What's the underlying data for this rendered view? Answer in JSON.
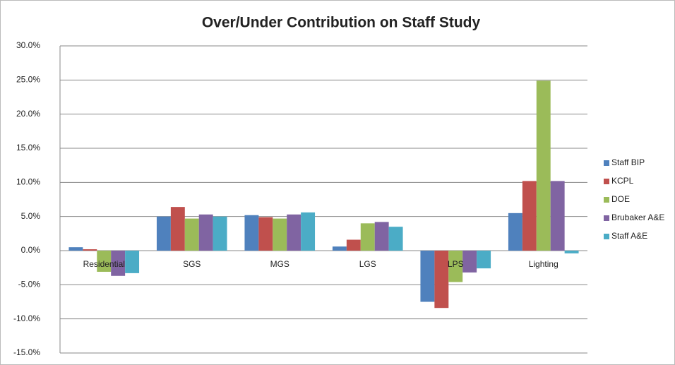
{
  "chart_data": {
    "type": "bar",
    "title": "Over/Under Contribution on Staff Study",
    "categories": [
      "Residential",
      "SGS",
      "MGS",
      "LGS",
      "LPS",
      "Lighting"
    ],
    "series": [
      {
        "name": "Staff BIP",
        "color": "#4f81bd",
        "values": [
          0.5,
          5.0,
          5.2,
          0.6,
          -7.5,
          5.5
        ]
      },
      {
        "name": "KCPL",
        "color": "#c0504d",
        "values": [
          0.2,
          6.4,
          4.9,
          1.6,
          -8.4,
          10.2
        ]
      },
      {
        "name": "DOE",
        "color": "#9bbb59",
        "values": [
          -3.1,
          4.7,
          4.7,
          4.0,
          -4.6,
          24.9
        ]
      },
      {
        "name": "Brubaker A&E",
        "color": "#8064a2",
        "values": [
          -3.7,
          5.3,
          5.3,
          4.2,
          -3.2,
          10.2
        ]
      },
      {
        "name": "Staff A&E",
        "color": "#4bacc6",
        "values": [
          -3.3,
          5.0,
          5.6,
          3.5,
          -2.6,
          -0.4
        ]
      }
    ],
    "ylim": [
      -15,
      30
    ],
    "yticks": [
      {
        "value": -15,
        "label": "-15.0%"
      },
      {
        "value": -10,
        "label": "-10.0%"
      },
      {
        "value": -5,
        "label": "-5.0%"
      },
      {
        "value": 0,
        "label": "0.0%"
      },
      {
        "value": 5,
        "label": "5.0%"
      },
      {
        "value": 10,
        "label": "10.0%"
      },
      {
        "value": 15,
        "label": "15.0%"
      },
      {
        "value": 20,
        "label": "20.0%"
      },
      {
        "value": 25,
        "label": "25.0%"
      },
      {
        "value": 30,
        "label": "30.0%"
      }
    ],
    "grid": true,
    "legend": "right"
  }
}
